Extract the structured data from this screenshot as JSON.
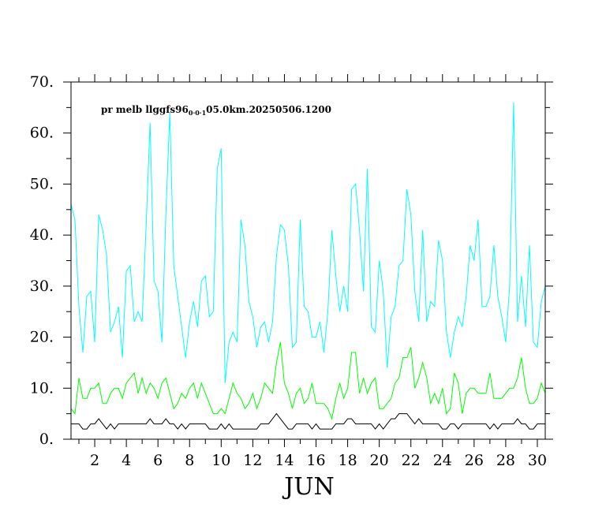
{
  "chart_data": {
    "type": "line",
    "title": {
      "prefix": "pr melb llggfs96",
      "subscript": "0·0·1",
      "suffix": "05.0km.20250506.1200"
    },
    "xlabel": "JUN",
    "ylabel": "",
    "xlim": [
      0.5,
      30.5
    ],
    "ylim": [
      0,
      70
    ],
    "x_ticks": [
      2,
      4,
      6,
      8,
      10,
      12,
      14,
      16,
      18,
      20,
      22,
      24,
      26,
      28,
      30
    ],
    "x_tick_labels": [
      "2",
      "4",
      "6",
      "8",
      "10",
      "12",
      "14",
      "16",
      "18",
      "20",
      "22",
      "24",
      "26",
      "28",
      "30"
    ],
    "y_ticks": [
      0,
      10,
      20,
      30,
      40,
      50,
      60,
      70
    ],
    "y_tick_labels": [
      "0.",
      "10.",
      "20.",
      "30.",
      "40.",
      "50.",
      "60.",
      "70."
    ],
    "x_start": 0.5,
    "x_step": 0.25,
    "series": [
      {
        "color": "#00ffff",
        "values": [
          46,
          43,
          26,
          17,
          28,
          29,
          19,
          44,
          41,
          36,
          21,
          23,
          26,
          16,
          33,
          34,
          23,
          25,
          23,
          42,
          62,
          31,
          29,
          19,
          44,
          64,
          34,
          28,
          22,
          16,
          23,
          27,
          22,
          31,
          32,
          24,
          25,
          53,
          57,
          11,
          19,
          21,
          19,
          43,
          38,
          27,
          24,
          18,
          22,
          23,
          19,
          23,
          36,
          42,
          41,
          34,
          18,
          19,
          43,
          26,
          25,
          20,
          20,
          23,
          17,
          25,
          41,
          32,
          25,
          30,
          25,
          49,
          50,
          41,
          29,
          53,
          22,
          21,
          35,
          29,
          14,
          24,
          26,
          34,
          35,
          49,
          44,
          29,
          23,
          41,
          23,
          27,
          26,
          39,
          35,
          21,
          16,
          21,
          24,
          22,
          28,
          38,
          35,
          43,
          26,
          26,
          28,
          38,
          28,
          24,
          19,
          30,
          66,
          23,
          32,
          22,
          38,
          19,
          18,
          27,
          30
        ]
      },
      {
        "color": "#00ff00",
        "values": [
          6,
          5,
          12,
          8,
          8,
          10,
          10,
          11,
          7,
          7,
          9,
          10,
          10,
          8,
          11,
          12,
          13,
          9,
          12,
          9,
          11,
          10,
          8,
          11,
          12,
          9,
          6,
          7,
          9,
          8,
          10,
          11,
          8,
          11,
          9,
          7,
          5,
          5,
          6,
          5,
          8,
          11,
          9,
          8,
          6,
          7,
          9,
          6,
          8,
          11,
          10,
          9,
          15,
          19,
          11,
          9,
          6,
          9,
          10,
          7,
          8,
          11,
          7,
          7,
          7,
          6,
          4,
          8,
          11,
          8,
          10,
          17,
          17,
          9,
          12,
          9,
          11,
          12,
          6,
          6,
          7,
          8,
          11,
          12,
          16,
          16,
          18,
          10,
          12,
          15,
          12,
          7,
          9,
          7,
          10,
          5,
          6,
          13,
          11,
          5,
          9,
          10,
          10,
          9,
          9,
          9,
          13,
          8,
          8,
          8,
          9,
          10,
          10,
          12,
          16,
          10,
          7,
          7,
          8,
          11,
          9
        ]
      },
      {
        "color": "#000000",
        "values": [
          3,
          3,
          3,
          2,
          2,
          3,
          3,
          4,
          3,
          2,
          3,
          2,
          3,
          3,
          3,
          3,
          3,
          3,
          3,
          3,
          4,
          3,
          3,
          3,
          4,
          3,
          3,
          2,
          3,
          2,
          3,
          3,
          3,
          3,
          3,
          2,
          2,
          2,
          3,
          2,
          3,
          2,
          2,
          2,
          2,
          2,
          2,
          2,
          3,
          3,
          3,
          4,
          5,
          4,
          3,
          2,
          2,
          3,
          3,
          3,
          3,
          2,
          3,
          2,
          2,
          2,
          2,
          3,
          3,
          3,
          4,
          4,
          3,
          3,
          3,
          3,
          3,
          2,
          3,
          2,
          3,
          4,
          4,
          5,
          5,
          5,
          4,
          3,
          4,
          3,
          3,
          3,
          3,
          3,
          2,
          2,
          3,
          3,
          2,
          3,
          3,
          3,
          3,
          3,
          3,
          3,
          2,
          3,
          2,
          3,
          3,
          3,
          3,
          4,
          3,
          3,
          2,
          2,
          3,
          3,
          3
        ]
      }
    ]
  }
}
